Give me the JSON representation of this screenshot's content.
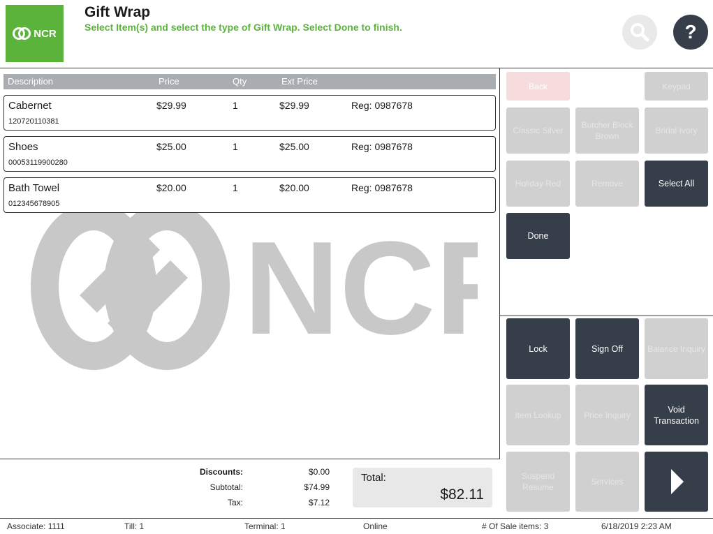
{
  "header": {
    "logo_text": "NCR",
    "title": "Gift Wrap",
    "subtitle": "Select Item(s) and select the type of Gift Wrap. Select Done to finish.",
    "help_label": "?"
  },
  "watermark_text": "NCR",
  "table": {
    "columns": [
      "Description",
      "Price",
      "Qty",
      "Ext Price"
    ],
    "rows": [
      {
        "description": "Cabernet",
        "code": "120720110381",
        "price": "$29.99",
        "qty": "1",
        "ext_price": "$29.99",
        "reg": "Reg: 0987678"
      },
      {
        "description": "Shoes",
        "code": "00053119900280",
        "price": "$25.00",
        "qty": "1",
        "ext_price": "$25.00",
        "reg": "Reg: 0987678"
      },
      {
        "description": "Bath Towel",
        "code": "012345678905",
        "price": "$20.00",
        "qty": "1",
        "ext_price": "$20.00",
        "reg": "Reg: 0987678"
      }
    ]
  },
  "totals": {
    "discounts_label": "Discounts:",
    "discounts_value": "$0.00",
    "subtotal_label": "Subtotal:",
    "subtotal_value": "$74.99",
    "tax_label": "Tax:",
    "tax_value": "$7.12",
    "total_label": "Total:",
    "total_value": "$82.11"
  },
  "buttons": {
    "back": "Back",
    "keypad": "Keypad",
    "classic_silver": "Classic Silver",
    "butcher_block_brown": "Butcher Block Brown",
    "bridal_ivory": "Bridal Ivory",
    "holiday_red": "Holiday Red",
    "remove": "Remove",
    "select_all": "Select All",
    "done": "Done",
    "lock": "Lock",
    "sign_off": "Sign Off",
    "balance_inquiry": "Balance Inquiry",
    "item_lookup": "Item Lookup",
    "price_inquiry": "Price Inquiry",
    "void_transaction": "Void Transaction",
    "suspend_resume": "Suspend Resume",
    "services": "Services"
  },
  "status_bar": {
    "associate": "Associate: 1111",
    "till": "Till: 1",
    "terminal": "Terminal: 1",
    "online": "Online",
    "sale_items": "# Of Sale items: 3",
    "datetime": "6/18/2019 2:23 AM"
  },
  "colors": {
    "brand_green": "#5bb33c",
    "dark_button": "#363e4a",
    "disabled_button": "#d0d0d0",
    "header_bar": "#a9adb1"
  }
}
